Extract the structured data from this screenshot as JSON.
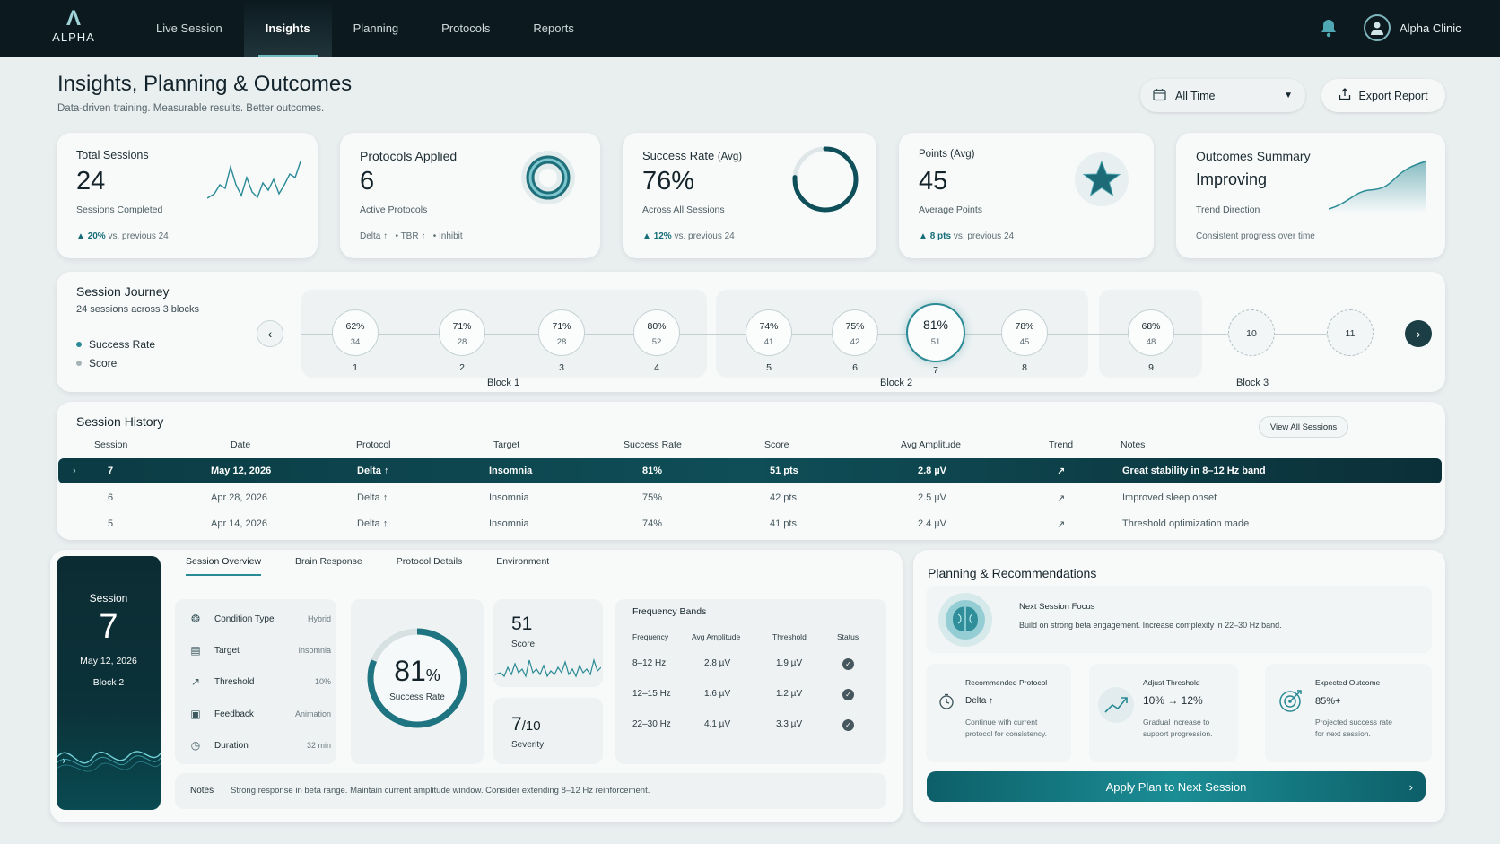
{
  "brand": {
    "logo_text": "ALPHA"
  },
  "nav": {
    "items": [
      {
        "label": "Live Session"
      },
      {
        "label": "Insights"
      },
      {
        "label": "Planning"
      },
      {
        "label": "Protocols"
      },
      {
        "label": "Reports"
      }
    ],
    "active": "Insights"
  },
  "user": {
    "name": "Alpha Clinic"
  },
  "page": {
    "title": "Insights, Planning & Outcomes",
    "subtitle": "Data-driven training. Measurable results. Better outcomes."
  },
  "toolbar": {
    "range_label": "All Time",
    "export_label": "Export Report"
  },
  "kpis": {
    "sessions": {
      "label": "Total Sessions",
      "value": "24",
      "sub": "Sessions Completed",
      "delta": "20%",
      "delta_suffix": "vs. previous 24"
    },
    "protocols": {
      "label": "Protocols Applied",
      "value": "6",
      "sub": "Active Protocols",
      "tags": [
        "Delta ↑",
        "• TBR ↑",
        "• Inhibit"
      ]
    },
    "success": {
      "label": "Success Rate",
      "label_suffix": "(Avg)",
      "value": "76%",
      "sub": "Across All Sessions",
      "delta": "12%",
      "delta_suffix": "vs. previous 24",
      "ring_fraction": 0.76
    },
    "points": {
      "label": "Points (Avg)",
      "value": "45",
      "sub": "Average Points",
      "delta": "8 pts",
      "delta_suffix": "vs. previous 24"
    },
    "outcomes": {
      "label": "Outcomes Summary",
      "value": "Improving",
      "sub": "Trend Direction",
      "foot": "Consistent progress over time"
    }
  },
  "journey": {
    "title": "Session Journey",
    "subtitle": "24 sessions across 3 blocks",
    "legend": [
      {
        "label": "Success Rate",
        "color": "#2a8a95"
      },
      {
        "label": "Score",
        "color": "#a7b4b7"
      }
    ],
    "blocks": [
      {
        "label": "Block 1"
      },
      {
        "label": "Block 2"
      },
      {
        "label": "Block 3"
      }
    ],
    "sessions": [
      {
        "num": "1",
        "pct": "62%",
        "score": "34"
      },
      {
        "num": "2",
        "pct": "71%",
        "score": "28"
      },
      {
        "num": "3",
        "pct": "71%",
        "score": "28"
      },
      {
        "num": "4",
        "pct": "80%",
        "score": "52"
      },
      {
        "num": "5",
        "pct": "74%",
        "score": "41"
      },
      {
        "num": "6",
        "pct": "75%",
        "score": "42"
      },
      {
        "num": "7",
        "pct": "81%",
        "score": "51"
      },
      {
        "num": "8",
        "pct": "78%",
        "score": "45"
      },
      {
        "num": "9",
        "pct": "68%",
        "score": "48"
      },
      {
        "num": "10"
      },
      {
        "num": "11"
      }
    ]
  },
  "history": {
    "title": "Session History",
    "view_all": "View All Sessions",
    "columns": [
      "Session",
      "Date",
      "Protocol",
      "Target",
      "Success Rate",
      "Score",
      "Avg Amplitude",
      "Trend",
      "Notes"
    ],
    "rows": [
      [
        "7",
        "May 12, 2026",
        "Delta ↑",
        "Insomnia",
        "81%",
        "51 pts",
        "2.8 µV",
        "↗",
        "Great stability in 8–12 Hz band"
      ],
      [
        "6",
        "Apr 28, 2026",
        "Delta ↑",
        "Insomnia",
        "75%",
        "42 pts",
        "2.5 µV",
        "↗",
        "Improved sleep onset"
      ],
      [
        "5",
        "Apr 14, 2026",
        "Delta ↑",
        "Insomnia",
        "74%",
        "41 pts",
        "2.4 µV",
        "↗",
        "Threshold optimization made"
      ]
    ]
  },
  "detail": {
    "session_label": "Session",
    "session_num": "7",
    "date": "May 12, 2026",
    "block": "Block 2",
    "tabs": [
      "Session Overview",
      "Brain Response",
      "Protocol Details",
      "Environment"
    ],
    "conditions": [
      {
        "label": "Condition Type",
        "value": "Hybrid",
        "icon": "brain-icon"
      },
      {
        "label": "Target",
        "value": "Insomnia",
        "icon": "clipboard-icon"
      },
      {
        "label": "Threshold",
        "value": "10%",
        "icon": "trend-icon"
      },
      {
        "label": "Feedback",
        "value": "Animation",
        "icon": "monitor-icon"
      },
      {
        "label": "Duration",
        "value": "32 min",
        "icon": "clock-icon"
      }
    ],
    "success_value": "81",
    "success_unit": "%",
    "success_label": "Success Rate",
    "success_fraction": 0.81,
    "score_value": "51",
    "score_label": "Score",
    "severity_value": "7",
    "severity_max": "/10",
    "severity_label": "Severity",
    "freq": {
      "title": "Frequency Bands",
      "headers": [
        "Frequency",
        "Avg Amplitude",
        "Threshold",
        "Status"
      ],
      "rows": [
        [
          "8–12 Hz",
          "2.8 µV",
          "1.9 µV"
        ],
        [
          "12–15 Hz",
          "1.6 µV",
          "1.2 µV"
        ],
        [
          "22–30 Hz",
          "4.1 µV",
          "3.3 µV"
        ]
      ]
    },
    "notes_label": "Notes",
    "notes": "Strong response in beta range. Maintain current amplitude window. Consider extending 8–12 Hz reinforcement."
  },
  "planning": {
    "title": "Planning & Recommendations",
    "focus_title": "Next Session Focus",
    "focus_text": "Build on strong beta engagement. Increase complexity in 22–30 Hz band.",
    "cards": [
      {
        "title": "Recommended Protocol",
        "value": "Delta ↑",
        "desc": [
          "Continue with current",
          "protocol for consistency."
        ]
      },
      {
        "title": "Adjust Threshold",
        "value": "10%  →  12%",
        "desc": [
          "Gradual increase to",
          "support progression."
        ]
      },
      {
        "title": "Expected Outcome",
        "value": "85%+",
        "desc": [
          "Projected success rate",
          "for next session."
        ]
      }
    ],
    "apply_label": "Apply Plan to Next Session"
  },
  "colors": {
    "accent": "#2a8a95",
    "dark": "#0c1a20",
    "selected_row": "#0f4e57"
  }
}
